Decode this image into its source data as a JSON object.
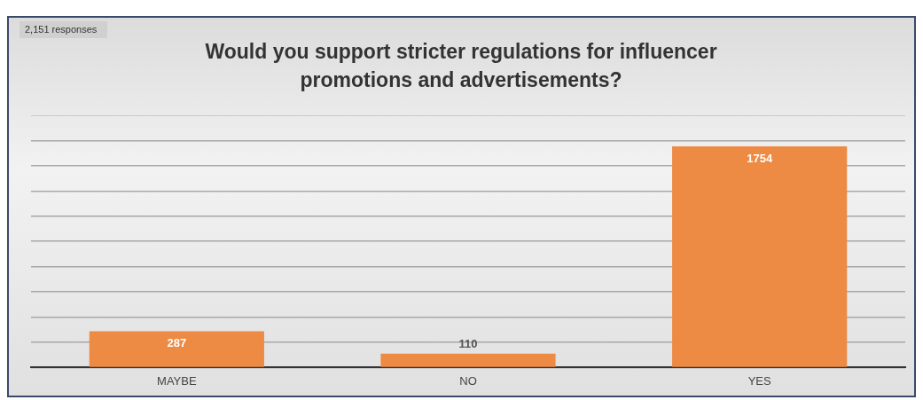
{
  "chart_data": {
    "type": "bar",
    "title": "Would you support stricter regulations for influencer promotions and advertisements?",
    "annotations": [
      "2,151 responses"
    ],
    "categories": [
      "MAYBE",
      "NO",
      "YES"
    ],
    "values": [
      287,
      110,
      1754
    ],
    "color": "#ed8a44",
    "ylim": [
      0,
      2000
    ],
    "yticks": [
      {
        "value": 0,
        "label": null
      },
      {
        "value": 200,
        "label": null
      },
      {
        "value": 400,
        "label": null
      },
      {
        "value": 600,
        "label": null
      },
      {
        "value": 800,
        "label": null
      },
      {
        "value": 1000,
        "label": null
      },
      {
        "value": 1200,
        "label": null
      },
      {
        "value": 1400,
        "label": null
      },
      {
        "value": 1600,
        "label": null
      },
      {
        "value": 1800,
        "label": null
      },
      {
        "value": 2000,
        "label": null
      }
    ],
    "tick_labels": "x",
    "grid": "y",
    "data_labels": true,
    "legend": false
  }
}
